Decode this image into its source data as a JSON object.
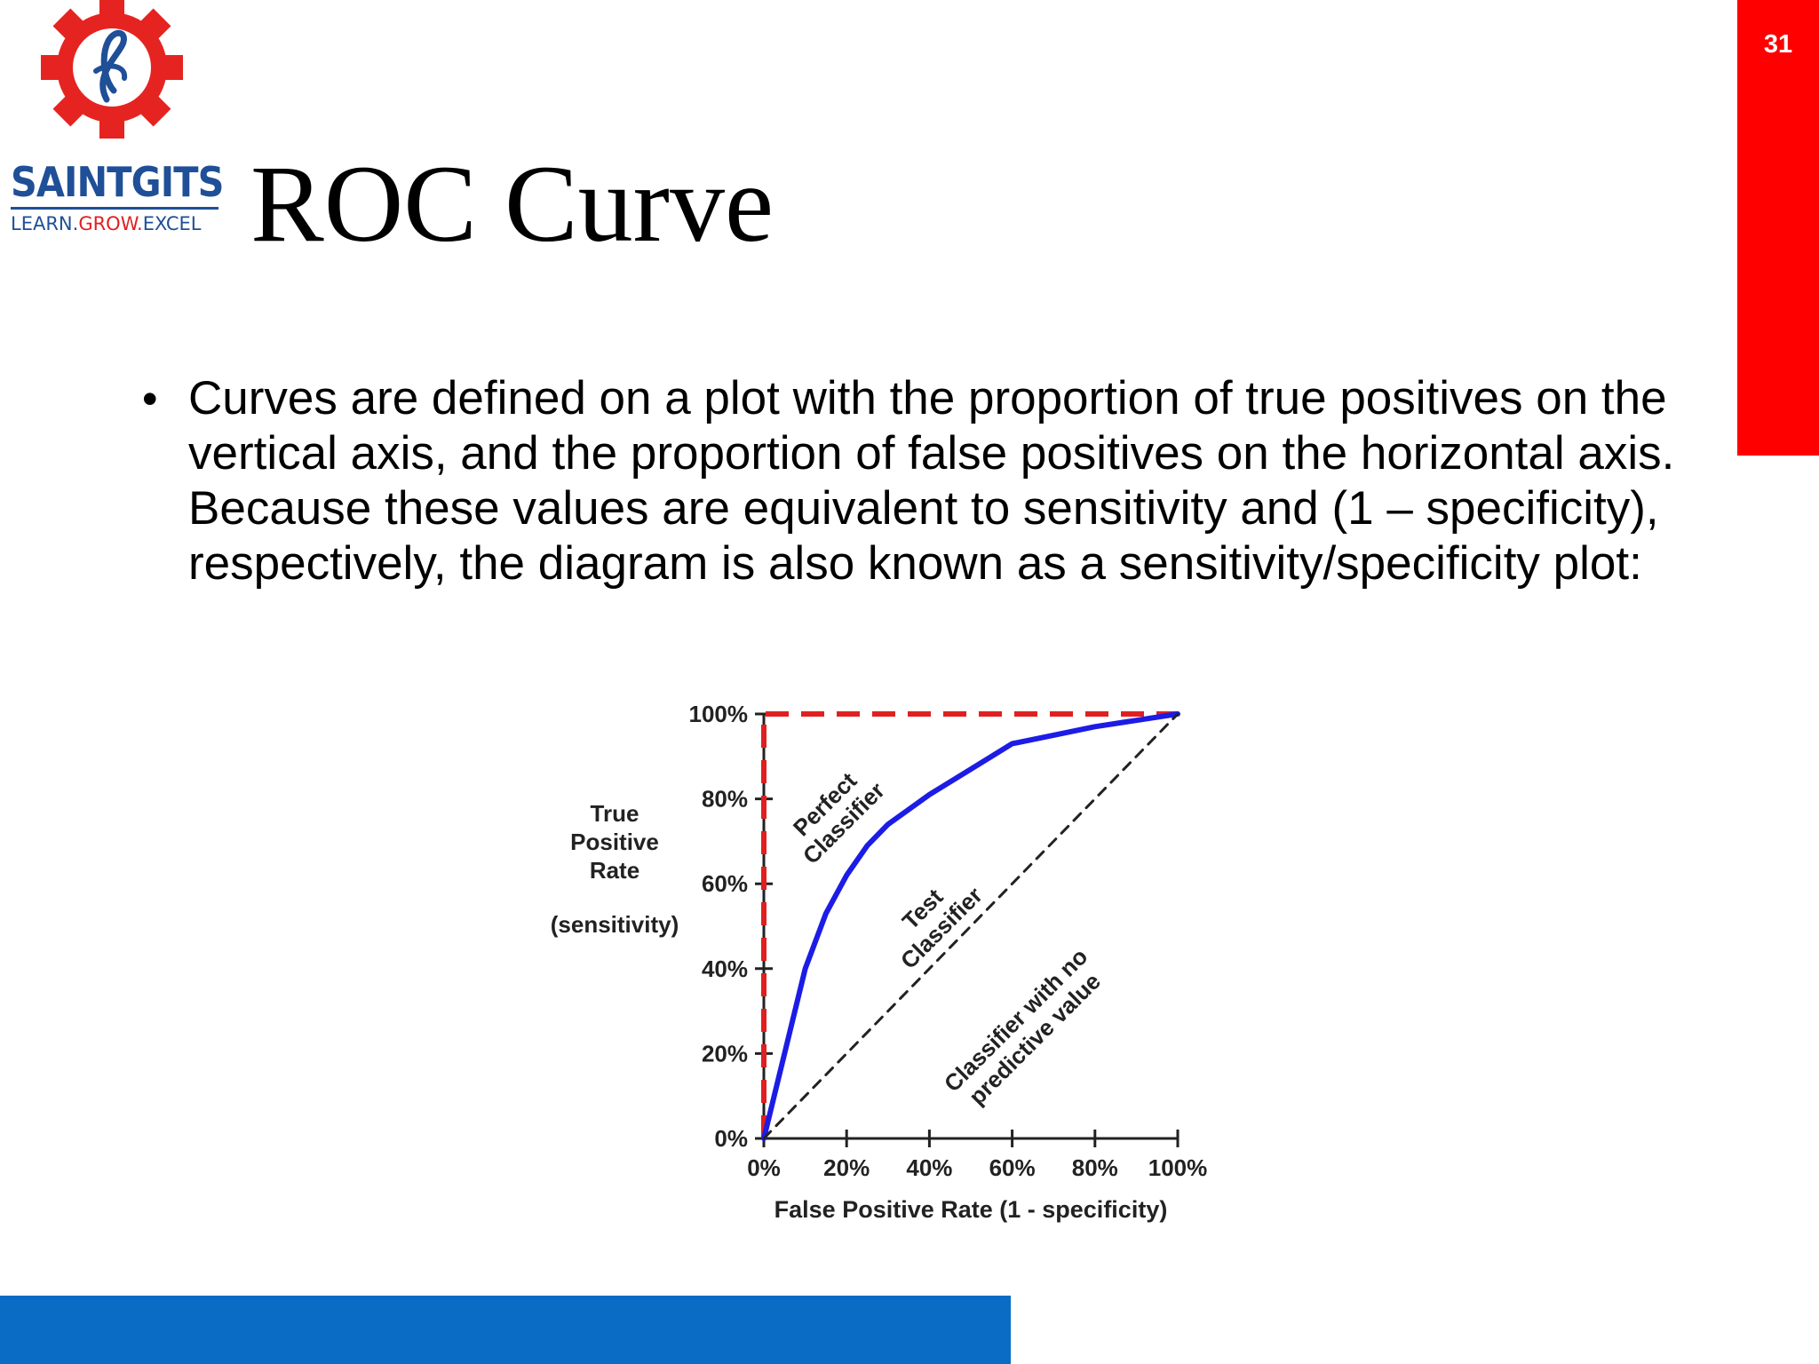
{
  "slide": {
    "number": "31",
    "title": "ROC Curve",
    "logo": {
      "name": "SAINTGITS",
      "tagline_pre": "LEARN.",
      "tagline_mid": "GROW.",
      "tagline_post": "EXCEL"
    },
    "bullet": "Curves are defined on a plot with the proportion of true positives on the vertical axis, and the proportion of false positives on the horizontal axis. Because these values are equivalent to sensitivity and (1 – specificity), respectively, the diagram is also known as a sensitivity/specificity plot:"
  },
  "colors": {
    "accent_red": "#ff0000",
    "footer_blue": "#0a6cc4",
    "logo_blue": "#1f4f97",
    "curve_blue": "#1c1ce6"
  },
  "chart_data": {
    "type": "line",
    "xlabel": "False Positive Rate (1 - specificity)",
    "ylabel_lines": [
      "True",
      "Positive",
      "Rate"
    ],
    "ylabel_note": "(sensitivity)",
    "xlim": [
      0,
      100
    ],
    "ylim": [
      0,
      100
    ],
    "x_ticks": [
      "0%",
      "20%",
      "40%",
      "60%",
      "80%",
      "100%"
    ],
    "y_ticks": [
      "0%",
      "20%",
      "40%",
      "60%",
      "80%",
      "100%"
    ],
    "grid": false,
    "series": [
      {
        "name": "Perfect Classifier",
        "label_lines": [
          "Perfect",
          "Classifier"
        ],
        "style": "dashed",
        "color": "#e02020",
        "x": [
          0,
          0,
          100
        ],
        "y": [
          0,
          100,
          100
        ]
      },
      {
        "name": "Test Classifier",
        "label_lines": [
          "Test",
          "Classifier"
        ],
        "style": "solid",
        "color": "#1c1ce6",
        "x": [
          0,
          5,
          10,
          15,
          20,
          25,
          30,
          40,
          50,
          60,
          70,
          80,
          90,
          100
        ],
        "y": [
          0,
          20,
          40,
          53,
          62,
          69,
          74,
          81,
          87,
          93,
          95,
          97,
          98.5,
          100
        ]
      },
      {
        "name": "Classifier with no predictive value",
        "label_lines": [
          "Classifier with no",
          "predictive value"
        ],
        "style": "dashed",
        "color": "#222222",
        "x": [
          0,
          100
        ],
        "y": [
          0,
          100
        ]
      }
    ]
  }
}
